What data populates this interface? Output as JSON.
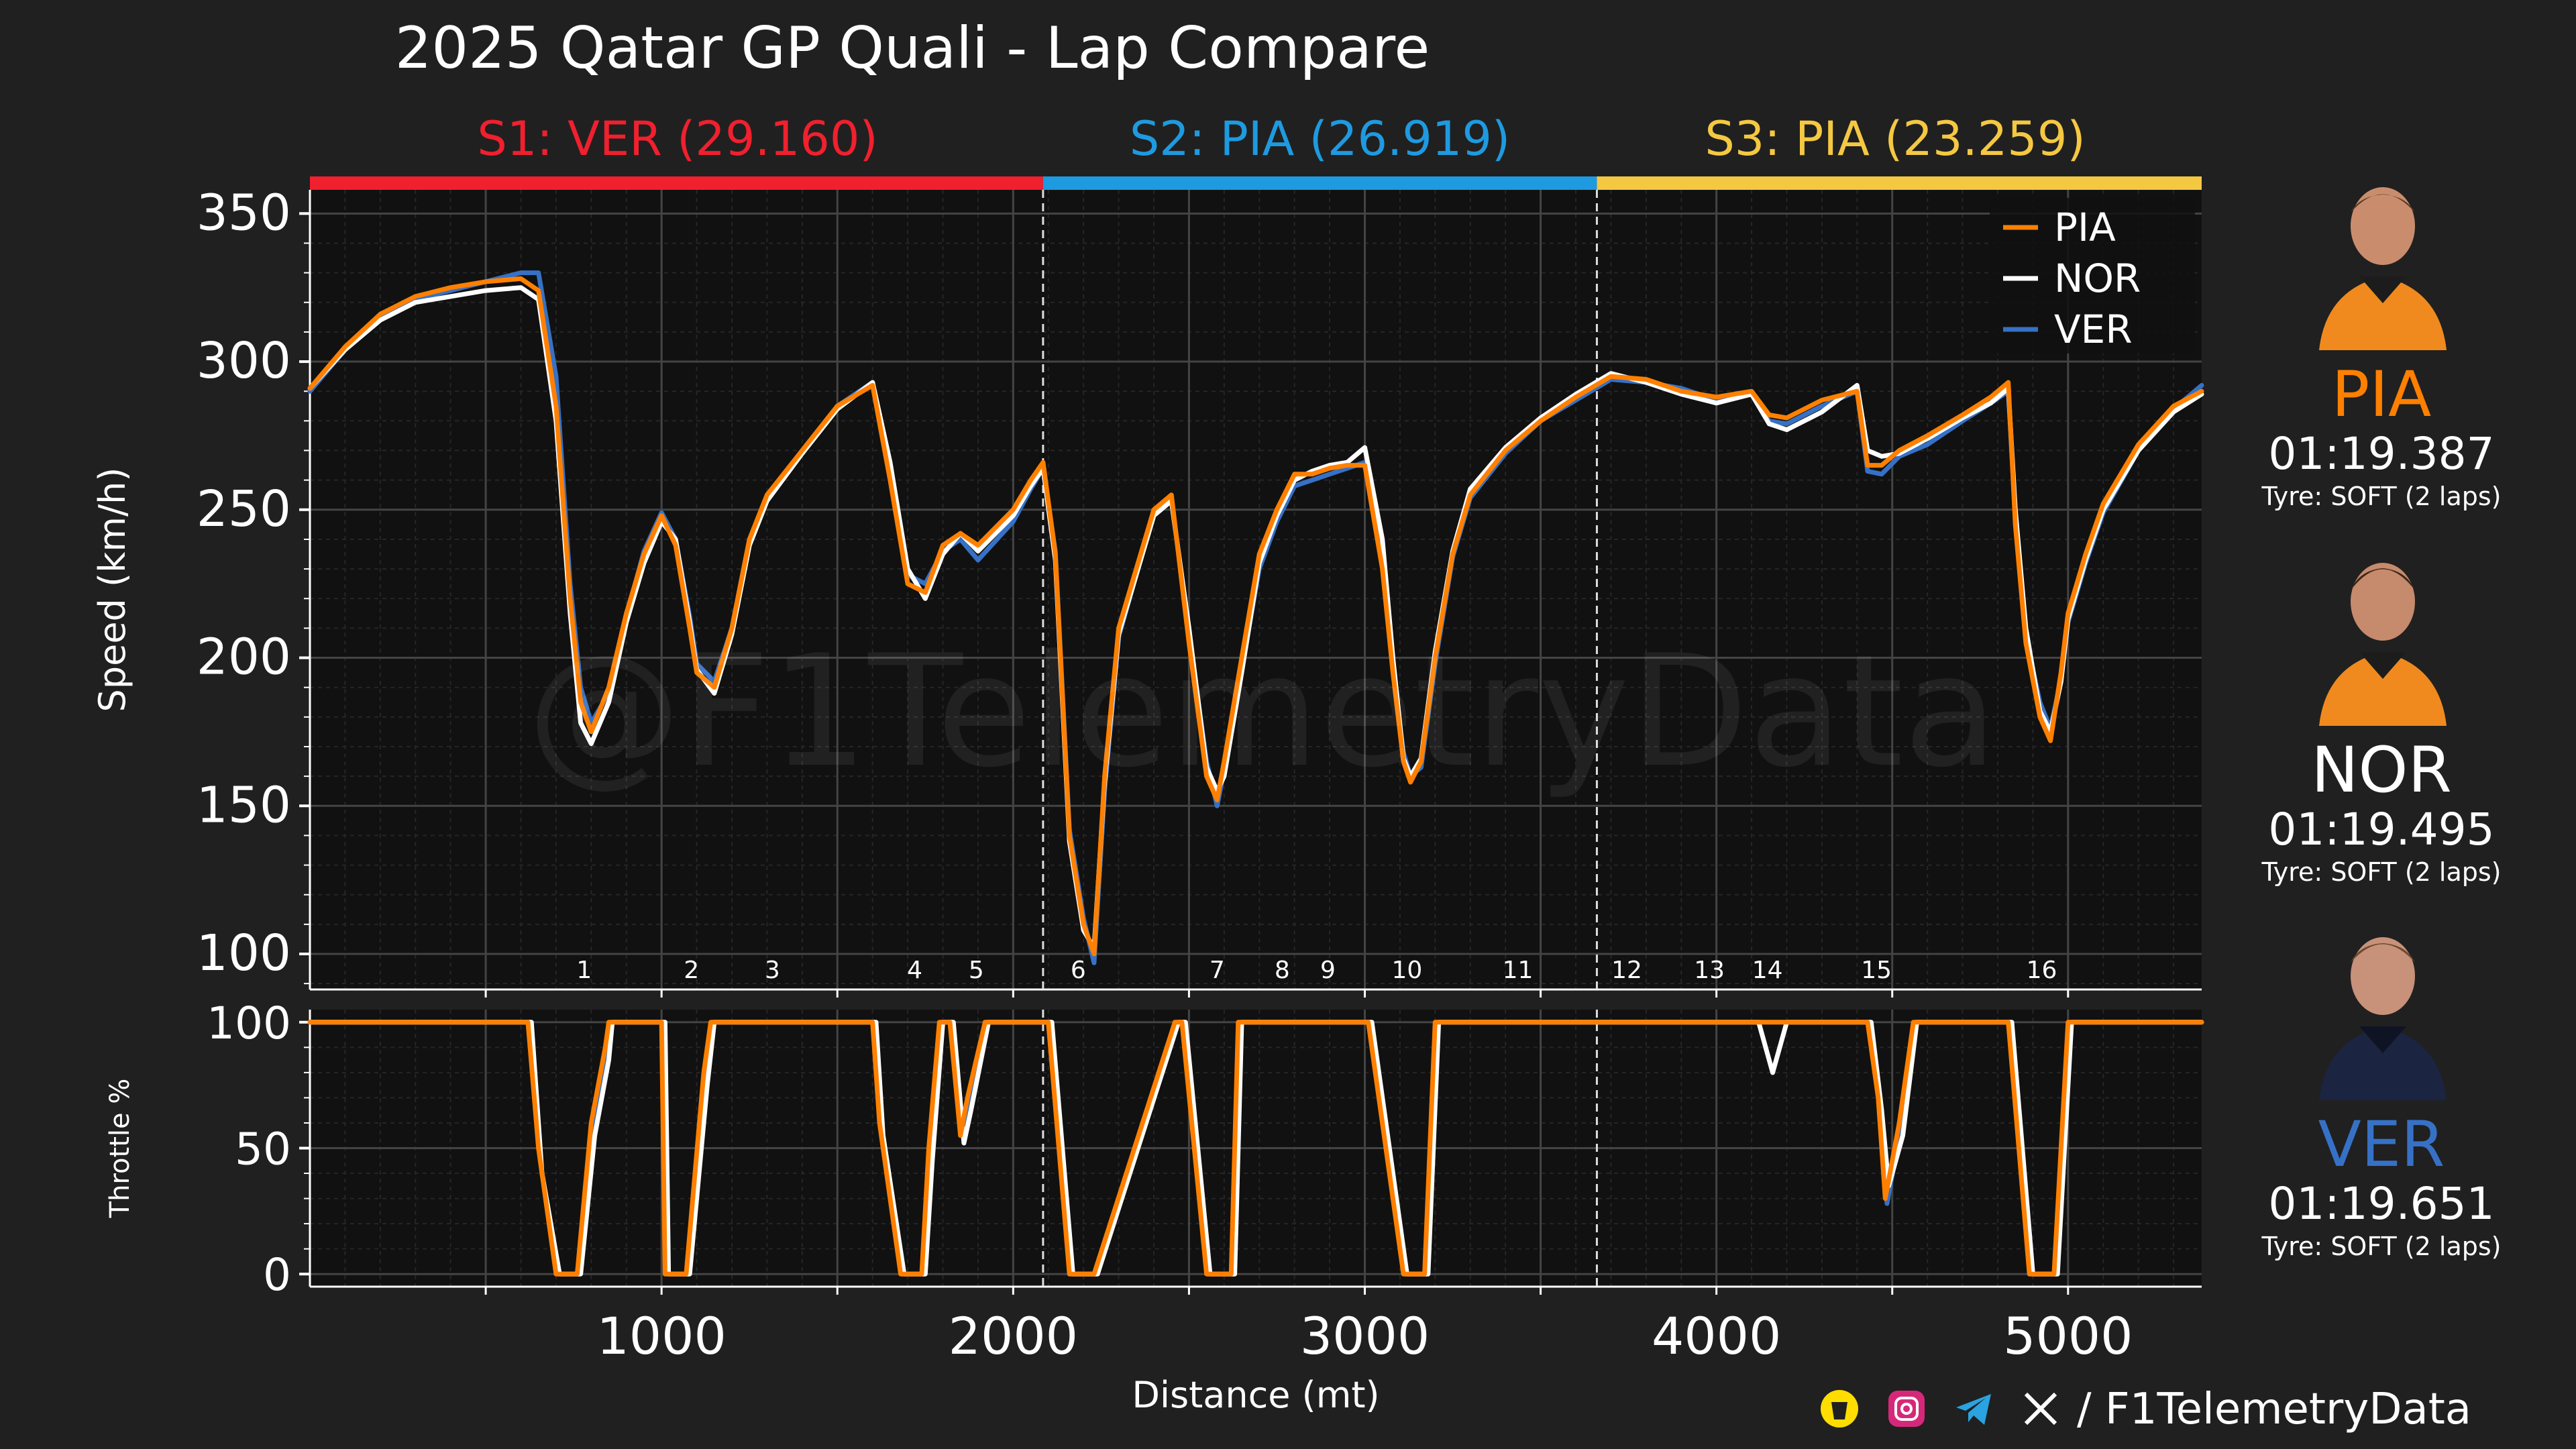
{
  "title": "2025 Qatar GP Quali - Lap Compare",
  "sectors": [
    {
      "label": "S1: VER (29.160)",
      "color": "#f0202e",
      "start": 0,
      "end": 2085
    },
    {
      "label": "S2: PIA (26.919)",
      "color": "#1e9ae0",
      "start": 2085,
      "end": 3660
    },
    {
      "label": "S3: PIA (23.259)",
      "color": "#f5c842",
      "start": 3660,
      "end": 5380
    }
  ],
  "drivers": [
    {
      "code": "PIA",
      "time": "01:19.387",
      "tyre": "Tyre: SOFT (2 laps)",
      "color": "#ff8000",
      "photo_icon": "driver-portrait-icon"
    },
    {
      "code": "NOR",
      "time": "01:19.495",
      "tyre": "Tyre: SOFT (2 laps)",
      "color": "#ffffff",
      "photo_icon": "driver-portrait-icon"
    },
    {
      "code": "VER",
      "time": "01:19.651",
      "tyre": "Tyre: SOFT (2 laps)",
      "color": "#3671c6",
      "photo_icon": "driver-portrait-icon"
    }
  ],
  "watermark": "@F1TelemetryData",
  "footer": {
    "handle": "/ F1TelemetryData",
    "icons": [
      "buymeacoffee-icon",
      "instagram-icon",
      "telegram-icon",
      "x-icon"
    ]
  },
  "corners": [
    {
      "label": "1",
      "x": 780
    },
    {
      "label": "2",
      "x": 1085
    },
    {
      "label": "3",
      "x": 1315
    },
    {
      "label": "4",
      "x": 1720
    },
    {
      "label": "5",
      "x": 1895
    },
    {
      "label": "6",
      "x": 2185
    },
    {
      "label": "7",
      "x": 2580
    },
    {
      "label": "8",
      "x": 2765
    },
    {
      "label": "9",
      "x": 2895
    },
    {
      "label": "10",
      "x": 3120
    },
    {
      "label": "11",
      "x": 3435
    },
    {
      "label": "12",
      "x": 3745
    },
    {
      "label": "13",
      "x": 3980
    },
    {
      "label": "14",
      "x": 4145
    },
    {
      "label": "15",
      "x": 4455
    },
    {
      "label": "16",
      "x": 4925
    }
  ],
  "chart_data": [
    {
      "type": "line",
      "ylabel": "Speed (km/h)",
      "xlim": [
        0,
        5380
      ],
      "ylim": [
        88,
        358
      ],
      "yticks": [
        100,
        150,
        200,
        250,
        300,
        350
      ],
      "legend": "top-right",
      "grid": true,
      "series": [
        {
          "name": "PIA",
          "color": "#ff8000",
          "x": [
            0,
            100,
            200,
            300,
            400,
            500,
            600,
            650,
            700,
            740,
            770,
            800,
            850,
            900,
            950,
            1000,
            1040,
            1080,
            1100,
            1150,
            1200,
            1250,
            1300,
            1400,
            1500,
            1600,
            1650,
            1700,
            1750,
            1800,
            1850,
            1900,
            2000,
            2050,
            2085,
            2120,
            2160,
            2200,
            2230,
            2260,
            2300,
            2400,
            2450,
            2500,
            2550,
            2580,
            2600,
            2650,
            2700,
            2750,
            2800,
            2850,
            2900,
            2950,
            3000,
            3050,
            3080,
            3110,
            3130,
            3160,
            3200,
            3250,
            3300,
            3400,
            3500,
            3600,
            3700,
            3800,
            3900,
            4000,
            4100,
            4150,
            4200,
            4300,
            4400,
            4430,
            4470,
            4520,
            4600,
            4700,
            4780,
            4830,
            4850,
            4880,
            4920,
            4950,
            4980,
            5000,
            5050,
            5100,
            5200,
            5300,
            5380
          ],
          "y": [
            291,
            305,
            316,
            322,
            325,
            327,
            328,
            324,
            285,
            220,
            185,
            175,
            190,
            215,
            235,
            248,
            238,
            210,
            195,
            190,
            210,
            240,
            255,
            270,
            285,
            292,
            260,
            225,
            222,
            238,
            242,
            238,
            250,
            260,
            266,
            235,
            140,
            110,
            100,
            160,
            210,
            250,
            255,
            205,
            160,
            152,
            165,
            200,
            235,
            250,
            262,
            262,
            264,
            265,
            265,
            230,
            195,
            165,
            158,
            165,
            200,
            235,
            255,
            270,
            280,
            288,
            295,
            294,
            290,
            288,
            290,
            282,
            281,
            287,
            290,
            265,
            265,
            270,
            275,
            282,
            288,
            293,
            245,
            205,
            180,
            172,
            195,
            215,
            235,
            252,
            272,
            285,
            290
          ]
        },
        {
          "name": "NOR",
          "color": "#ffffff",
          "x": [
            0,
            100,
            200,
            300,
            400,
            500,
            600,
            650,
            700,
            740,
            770,
            800,
            850,
            900,
            950,
            1000,
            1040,
            1080,
            1100,
            1150,
            1200,
            1250,
            1300,
            1400,
            1500,
            1600,
            1650,
            1700,
            1750,
            1800,
            1850,
            1900,
            2000,
            2050,
            2085,
            2120,
            2160,
            2200,
            2230,
            2260,
            2300,
            2400,
            2450,
            2500,
            2550,
            2580,
            2600,
            2650,
            2700,
            2750,
            2800,
            2850,
            2900,
            2950,
            3000,
            3050,
            3080,
            3110,
            3130,
            3160,
            3200,
            3250,
            3300,
            3400,
            3500,
            3600,
            3700,
            3800,
            3900,
            4000,
            4100,
            4150,
            4200,
            4300,
            4400,
            4430,
            4470,
            4520,
            4600,
            4700,
            4780,
            4830,
            4850,
            4880,
            4920,
            4950,
            4980,
            5000,
            5050,
            5100,
            5200,
            5300,
            5380
          ],
          "y": [
            291,
            304,
            314,
            320,
            322,
            324,
            325,
            321,
            280,
            215,
            178,
            171,
            185,
            212,
            232,
            246,
            240,
            212,
            196,
            188,
            208,
            238,
            253,
            269,
            284,
            293,
            266,
            230,
            220,
            235,
            242,
            236,
            248,
            258,
            264,
            233,
            138,
            108,
            102,
            158,
            208,
            248,
            253,
            210,
            163,
            155,
            160,
            195,
            232,
            248,
            260,
            263,
            265,
            266,
            271,
            240,
            200,
            166,
            160,
            166,
            202,
            236,
            257,
            271,
            281,
            289,
            296,
            293,
            289,
            286,
            289,
            279,
            277,
            283,
            292,
            270,
            268,
            269,
            274,
            281,
            286,
            291,
            250,
            210,
            182,
            175,
            192,
            213,
            233,
            250,
            270,
            283,
            289
          ]
        },
        {
          "name": "VER",
          "color": "#3671c6",
          "x": [
            0,
            100,
            200,
            300,
            400,
            500,
            600,
            650,
            700,
            740,
            770,
            800,
            850,
            900,
            950,
            1000,
            1040,
            1080,
            1100,
            1150,
            1200,
            1250,
            1300,
            1400,
            1500,
            1600,
            1650,
            1700,
            1750,
            1800,
            1850,
            1900,
            2000,
            2050,
            2085,
            2120,
            2160,
            2200,
            2230,
            2260,
            2300,
            2400,
            2450,
            2500,
            2550,
            2580,
            2600,
            2650,
            2700,
            2750,
            2800,
            2850,
            2900,
            2950,
            3000,
            3050,
            3080,
            3110,
            3130,
            3160,
            3200,
            3250,
            3300,
            3400,
            3500,
            3600,
            3700,
            3800,
            3900,
            4000,
            4100,
            4150,
            4200,
            4300,
            4400,
            4430,
            4470,
            4520,
            4600,
            4700,
            4780,
            4830,
            4850,
            4880,
            4920,
            4950,
            4980,
            5000,
            5050,
            5100,
            5200,
            5300,
            5380
          ],
          "y": [
            290,
            304,
            315,
            321,
            324,
            327,
            330,
            330,
            295,
            225,
            190,
            178,
            188,
            214,
            236,
            249,
            240,
            214,
            198,
            192,
            210,
            240,
            254,
            270,
            285,
            293,
            262,
            228,
            225,
            236,
            240,
            233,
            246,
            257,
            264,
            236,
            142,
            112,
            97,
            155,
            207,
            249,
            254,
            208,
            165,
            150,
            162,
            196,
            230,
            246,
            258,
            260,
            262,
            264,
            266,
            232,
            196,
            168,
            160,
            163,
            198,
            234,
            254,
            269,
            280,
            287,
            294,
            293,
            291,
            287,
            289,
            280,
            279,
            285,
            290,
            263,
            262,
            268,
            272,
            280,
            286,
            290,
            247,
            207,
            185,
            176,
            193,
            212,
            232,
            249,
            270,
            284,
            292
          ]
        }
      ]
    },
    {
      "type": "line",
      "ylabel": "Throttle %",
      "xlabel": "Distance (mt)",
      "xlim": [
        0,
        5380
      ],
      "ylim": [
        -5,
        105
      ],
      "yticks": [
        0,
        50,
        100
      ],
      "xticks": [
        1000,
        2000,
        3000,
        4000,
        5000
      ],
      "grid": true,
      "series": [
        {
          "name": "PIA",
          "color": "#ff8000",
          "x": [
            0,
            620,
            650,
            700,
            720,
            760,
            800,
            840,
            850,
            1000,
            1010,
            1070,
            1120,
            1140,
            1600,
            1620,
            1680,
            1700,
            1740,
            1760,
            1790,
            1820,
            1850,
            1870,
            1920,
            2040,
            2100,
            2160,
            2220,
            2230,
            2460,
            2480,
            2550,
            2560,
            2620,
            2640,
            2980,
            3010,
            3110,
            3120,
            3170,
            3200,
            4400,
            4430,
            4460,
            4480,
            4520,
            4560,
            4800,
            4830,
            4890,
            4920,
            4960,
            5000,
            5380
          ],
          "y": [
            100,
            100,
            50,
            0,
            0,
            0,
            60,
            90,
            100,
            100,
            0,
            0,
            80,
            100,
            100,
            60,
            0,
            0,
            0,
            50,
            100,
            100,
            55,
            70,
            100,
            100,
            100,
            0,
            0,
            0,
            100,
            100,
            0,
            0,
            0,
            100,
            100,
            100,
            0,
            0,
            0,
            100,
            100,
            100,
            70,
            30,
            60,
            100,
            100,
            100,
            0,
            0,
            0,
            100,
            100
          ]
        },
        {
          "name": "NOR",
          "color": "#ffffff",
          "x": [
            0,
            630,
            660,
            710,
            730,
            770,
            810,
            850,
            860,
            1010,
            1020,
            1080,
            1130,
            1150,
            1610,
            1630,
            1690,
            1710,
            1750,
            1770,
            1800,
            1830,
            1860,
            1880,
            1930,
            2040,
            2110,
            2170,
            2230,
            2240,
            2470,
            2490,
            2560,
            2570,
            2630,
            2650,
            2990,
            3020,
            3120,
            3130,
            3180,
            3210,
            4080,
            4120,
            4160,
            4200,
            4410,
            4440,
            4470,
            4490,
            4530,
            4570,
            4810,
            4840,
            4900,
            4930,
            4970,
            5010,
            5380
          ],
          "y": [
            100,
            100,
            40,
            0,
            0,
            0,
            55,
            85,
            100,
            100,
            0,
            0,
            75,
            100,
            100,
            55,
            0,
            0,
            0,
            45,
            100,
            100,
            52,
            65,
            100,
            100,
            100,
            0,
            0,
            0,
            100,
            100,
            0,
            0,
            0,
            100,
            100,
            100,
            0,
            0,
            0,
            100,
            100,
            100,
            80,
            100,
            100,
            100,
            65,
            35,
            55,
            100,
            100,
            100,
            0,
            0,
            0,
            100,
            100
          ]
        },
        {
          "name": "VER",
          "color": "#3671c6",
          "x": [
            0,
            625,
            655,
            705,
            725,
            765,
            805,
            845,
            855,
            1005,
            1015,
            1075,
            1125,
            1145,
            1605,
            1625,
            1685,
            1705,
            1745,
            1765,
            1795,
            1825,
            1855,
            1875,
            1925,
            2040,
            2105,
            2165,
            2225,
            2235,
            2465,
            2485,
            2555,
            2565,
            2625,
            2645,
            2985,
            3015,
            3115,
            3125,
            3175,
            3205,
            4405,
            4435,
            4465,
            4485,
            4525,
            4565,
            4805,
            4835,
            4895,
            4925,
            4965,
            5005,
            5380
          ],
          "y": [
            100,
            100,
            45,
            0,
            0,
            0,
            58,
            88,
            100,
            100,
            0,
            0,
            78,
            100,
            100,
            58,
            0,
            0,
            0,
            48,
            100,
            100,
            58,
            68,
            100,
            100,
            100,
            0,
            0,
            0,
            100,
            100,
            0,
            0,
            0,
            100,
            100,
            100,
            0,
            0,
            0,
            100,
            100,
            100,
            68,
            28,
            58,
            100,
            100,
            100,
            0,
            0,
            0,
            100,
            100
          ]
        }
      ]
    }
  ]
}
